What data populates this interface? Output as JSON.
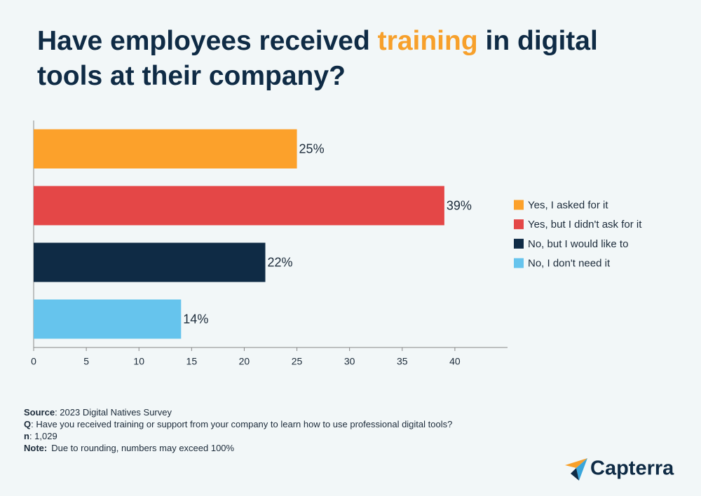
{
  "chart_data": {
    "type": "bar",
    "orientation": "horizontal",
    "title": [
      "Have employees received",
      "training",
      "in digital tools at their company?"
    ],
    "categories": [
      "Yes, I asked for it",
      "Yes, but I didn't ask for it",
      "No, but I would like to",
      "No, I don't need it"
    ],
    "values": [
      25,
      39,
      22,
      14
    ],
    "value_labels": [
      "25%",
      "39%",
      "22%",
      "14%"
    ],
    "colors": [
      "#fca12b",
      "#e44747",
      "#0f2b45",
      "#66c4ed"
    ],
    "xlim": [
      0,
      45
    ],
    "xticks": [
      0,
      5,
      10,
      15,
      20,
      25,
      30,
      35,
      40
    ],
    "legend": "right",
    "notes": [
      {
        "label": "Source",
        "text": ": 2023 Digital Natives Survey"
      },
      {
        "label": "Q",
        "text": ": Have you received training or support from your company to learn how to use professional digital tools?"
      },
      {
        "label": "n",
        "text": ": 1,029"
      },
      {
        "label": "Note:",
        "text": "Due to rounding, numbers may exceed 100%"
      }
    ]
  },
  "logo": "Capterra"
}
